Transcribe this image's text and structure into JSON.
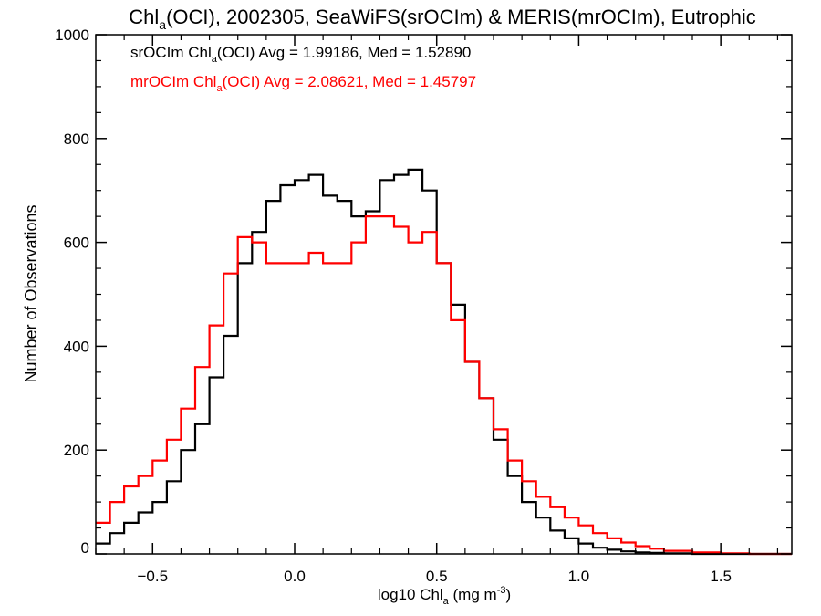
{
  "chart_data": {
    "type": "line",
    "title": {
      "prefix": "Chl",
      "sub": "a",
      "rest": "(OCI), 2002305, SeaWiFS(srOCIm) & MERIS(mrOCIm), Eutrophic"
    },
    "xlabel": {
      "prefix": "log10 Chl",
      "sub": "a",
      "rest": " (mg m",
      "sup": "-3",
      "close": ")"
    },
    "ylabel": "Number of Observations",
    "xlim": [
      -0.7,
      1.75
    ],
    "ylim": [
      0,
      1000
    ],
    "xticks": [
      -0.5,
      0.0,
      0.5,
      1.0,
      1.5
    ],
    "xtick_labels": [
      "−0.5",
      "0.0",
      "0.5",
      "1.0",
      "1.5"
    ],
    "yticks": [
      0,
      200,
      400,
      600,
      800,
      1000
    ],
    "ytick_labels": [
      "0",
      "200",
      "400",
      "600",
      "800",
      "1000"
    ],
    "grid": false,
    "annotations": [
      {
        "label_prefix": "srOCIm Chl",
        "label_sub": "a",
        "label_rest": "(OCI) Avg = 1.99186, Med = 1.52890",
        "color": "#000000"
      },
      {
        "label_prefix": "mrOCIm Chl",
        "label_sub": "a",
        "label_rest": "(OCI) Avg = 2.08621, Med = 1.45797",
        "color": "#ff0000"
      }
    ],
    "series": [
      {
        "color": "#000000",
        "x": [
          -0.7,
          -0.65,
          -0.6,
          -0.55,
          -0.5,
          -0.45,
          -0.4,
          -0.35,
          -0.3,
          -0.25,
          -0.2,
          -0.15,
          -0.1,
          -0.05,
          0.0,
          0.05,
          0.1,
          0.15,
          0.2,
          0.25,
          0.3,
          0.35,
          0.4,
          0.45,
          0.5,
          0.55,
          0.6,
          0.65,
          0.7,
          0.75,
          0.8,
          0.85,
          0.9,
          0.95,
          1.0,
          1.05,
          1.1,
          1.15,
          1.2,
          1.25,
          1.3,
          1.4,
          1.5,
          1.6,
          1.75
        ],
        "y": [
          20,
          40,
          60,
          80,
          100,
          140,
          200,
          250,
          340,
          420,
          560,
          620,
          680,
          710,
          720,
          730,
          690,
          680,
          650,
          660,
          720,
          730,
          740,
          700,
          560,
          480,
          370,
          300,
          220,
          150,
          100,
          70,
          45,
          30,
          20,
          12,
          8,
          5,
          3,
          2,
          1,
          0,
          0,
          0,
          0
        ]
      },
      {
        "color": "#ff0000",
        "x": [
          -0.7,
          -0.65,
          -0.6,
          -0.55,
          -0.5,
          -0.45,
          -0.4,
          -0.35,
          -0.3,
          -0.25,
          -0.2,
          -0.15,
          -0.1,
          -0.05,
          0.0,
          0.05,
          0.1,
          0.15,
          0.2,
          0.25,
          0.3,
          0.35,
          0.4,
          0.45,
          0.5,
          0.55,
          0.6,
          0.65,
          0.7,
          0.75,
          0.8,
          0.85,
          0.9,
          0.95,
          1.0,
          1.05,
          1.1,
          1.15,
          1.2,
          1.25,
          1.3,
          1.4,
          1.5,
          1.6,
          1.75
        ],
        "y": [
          60,
          100,
          130,
          150,
          180,
          220,
          280,
          360,
          440,
          540,
          610,
          600,
          560,
          560,
          560,
          580,
          560,
          560,
          600,
          650,
          650,
          630,
          600,
          620,
          560,
          450,
          370,
          300,
          240,
          180,
          140,
          110,
          90,
          70,
          55,
          40,
          30,
          22,
          15,
          10,
          6,
          3,
          1,
          0,
          0
        ]
      }
    ]
  }
}
